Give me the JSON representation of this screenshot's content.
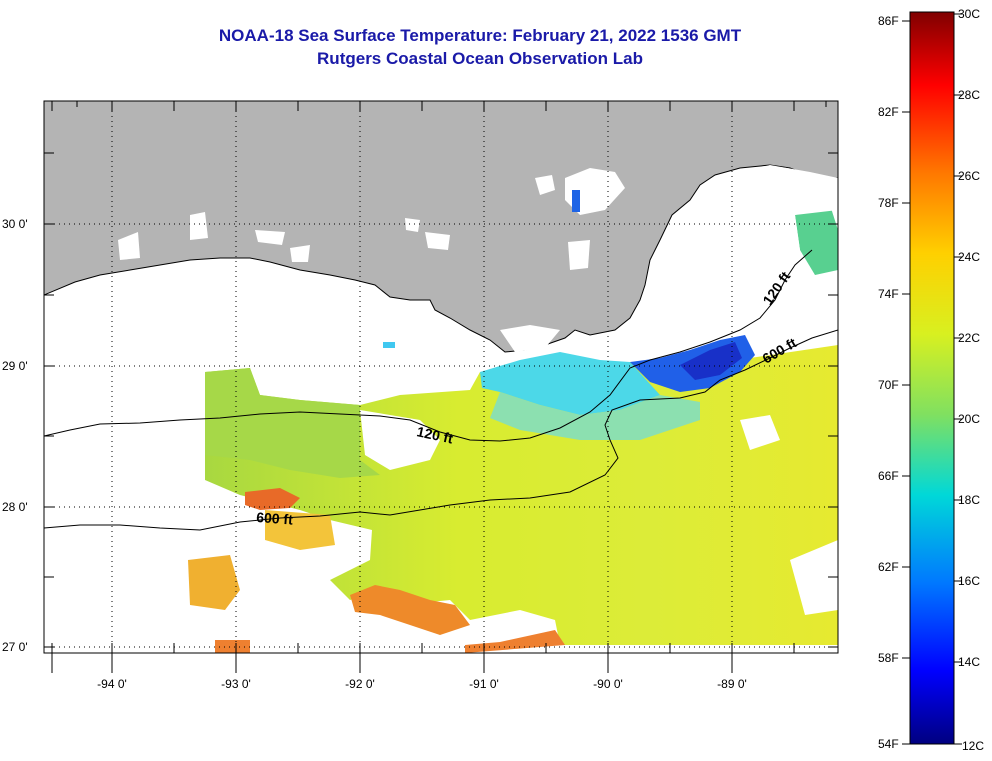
{
  "header": {
    "title_line1": "NOAA-18 Sea Surface Temperature:  February 21, 2022 1536 GMT",
    "title_line2": "Rutgers Coastal Ocean Observation Lab"
  },
  "map": {
    "lat_labels": [
      "30 0'",
      "29 0'",
      "28 0'",
      "27 0'"
    ],
    "lon_labels": [
      "-94 0'",
      "-93 0'",
      "-92 0'",
      "-91 0'",
      "-90 0'",
      "-89 0'"
    ],
    "depth_labels": [
      "120 ft",
      "120 ft",
      "600 ft",
      "600 ft"
    ],
    "colors": {
      "land": "#b4b4b4",
      "cloud": "#ffffff",
      "frame": "#000000"
    }
  },
  "colorbar": {
    "fahrenheit_labels": [
      "86F",
      "82F",
      "78F",
      "74F",
      "70F",
      "66F",
      "62F",
      "58F",
      "54F"
    ],
    "celsius_labels": [
      "30C",
      "28C",
      "26C",
      "24C",
      "22C",
      "20C",
      "18C",
      "16C",
      "14C",
      "12C"
    ]
  }
}
